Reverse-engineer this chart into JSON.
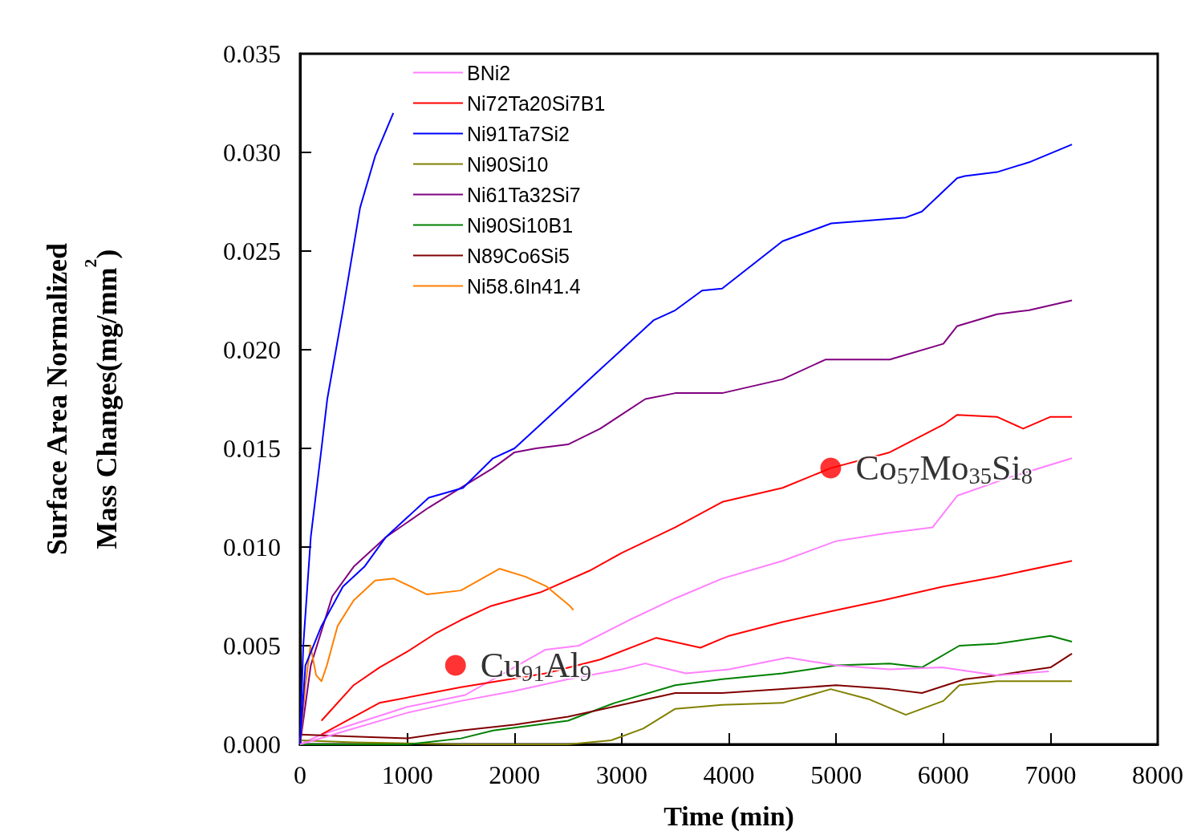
{
  "chart_data": {
    "type": "line",
    "xlabel": "Time (min)",
    "ylabel": "Surface Area Normalized\nMass Changes(mg/mm$^{2}$)",
    "xlim": [
      0,
      8000
    ],
    "xticks": [
      0,
      1000,
      2000,
      3000,
      4000,
      5000,
      6000,
      7000,
      8000
    ],
    "ylim": [
      0,
      0.035
    ],
    "yticks": [
      {
        "value": 0,
        "label": "0.000"
      },
      {
        "value": 0.005,
        "label": "0.005"
      },
      {
        "value": 0.01,
        "label": "0.010"
      },
      {
        "value": 0.015,
        "label": "0.015"
      },
      {
        "value": 0.02,
        "label": "0.020"
      },
      {
        "value": 0.025,
        "label": "0.025"
      },
      {
        "value": 0.03,
        "label": "0.030"
      },
      {
        "value": 0.035,
        "label": "0.035"
      }
    ],
    "grid": false,
    "legend": "top left",
    "marker": "none",
    "line_style": "solid",
    "annotations": [
      {
        "text": "Co$_{57}$Mo$_{35}$Si$_{8}$",
        "x": 4950,
        "y": 0.014
      },
      {
        "text": "Cu$_{91}$Al$_{9}$",
        "x": 1450,
        "y": 0.004
      }
    ],
    "series": [
      {
        "name": "BNi2",
        "color": "#ff80ff",
        "x": [
          0,
          200,
          600,
          1000,
          1540,
          2290,
          2600,
          3070,
          3500,
          3937,
          4500,
          5000,
          5470,
          5900,
          6130,
          6600,
          7200
        ],
        "values": [
          0,
          0.0005,
          0.0012,
          0.0019,
          0.0025,
          0.0048,
          0.005,
          0.0063,
          0.0074,
          0.0084,
          0.0093,
          0.0103,
          0.0107,
          0.011,
          0.0126,
          0.0135,
          0.0145
        ]
      },
      {
        "name": "Ni72Ta20Si7B1",
        "color": "#ff0000",
        "x": [
          200,
          500,
          741,
          1000,
          1257,
          1500,
          1775,
          2240,
          2700,
          3000,
          3500,
          3945,
          4500,
          4950,
          5500,
          6000,
          6130,
          6500,
          6745,
          7000,
          7200
        ],
        "values": [
          0.0012,
          0.003,
          0.0039,
          0.0047,
          0.0056,
          0.0063,
          0.007,
          0.0077,
          0.0088,
          0.0097,
          0.011,
          0.0123,
          0.013,
          0.014,
          0.0148,
          0.0162,
          0.0167,
          0.0166,
          0.016,
          0.0166,
          0.0166
        ]
      },
      {
        "name": "Ni91Ta7Si2",
        "color": "#0000ff",
        "x": [
          0,
          30,
          100,
          200,
          254,
          400,
          560,
          700,
          870
        ],
        "values": [
          0,
          0.005,
          0.0105,
          0.015,
          0.0175,
          0.022,
          0.0272,
          0.0298,
          0.032
        ]
      },
      {
        "name": "Ni90Si10",
        "color": "#808000",
        "x": [
          0,
          500,
          1500,
          2500,
          2900,
          3200,
          3500,
          3937,
          4500,
          4950,
          5300,
          5650,
          6000,
          6150,
          6500,
          7000,
          7200
        ],
        "values": [
          0.0002,
          0.0001,
          0,
          0,
          0.0002,
          0.0008,
          0.0018,
          0.002,
          0.0021,
          0.0028,
          0.0023,
          0.0015,
          0.0022,
          0.003,
          0.0032,
          0.0032,
          0.0032
        ]
      },
      {
        "name": "Ni61Ta32Si7",
        "color": "#800080",
        "x": [
          0,
          100,
          300,
          500,
          800,
          1200,
          1500,
          1800,
          2000,
          2200,
          2500,
          2800,
          3220,
          3500,
          3937,
          4500,
          4900,
          5500,
          6000,
          6130,
          6500,
          6800,
          7200
        ],
        "values": [
          0,
          0.004,
          0.0075,
          0.009,
          0.0105,
          0.012,
          0.013,
          0.014,
          0.0148,
          0.015,
          0.0152,
          0.016,
          0.0175,
          0.0178,
          0.0178,
          0.0185,
          0.0195,
          0.0195,
          0.0203,
          0.0212,
          0.0218,
          0.022,
          0.0225
        ]
      },
      {
        "name": "Ni90Si10B1",
        "color": "#008000",
        "x": [
          0,
          1000,
          1500,
          1800,
          2500,
          2935,
          3500,
          3937,
          4500,
          5000,
          5500,
          5800,
          6150,
          6500,
          7000,
          7200
        ],
        "values": [
          0,
          0,
          0.0003,
          0.0007,
          0.0012,
          0.0021,
          0.003,
          0.0033,
          0.0036,
          0.004,
          0.0041,
          0.0039,
          0.005,
          0.0051,
          0.0055,
          0.0052
        ]
      },
      {
        "name": "N89Co6Si5",
        "color": "#800000",
        "x": [
          0,
          500,
          1000,
          1500,
          2000,
          2500,
          3000,
          3500,
          3937,
          4500,
          5000,
          5500,
          5800,
          6200,
          6500,
          7000,
          7200
        ],
        "values": [
          0.0005,
          0.0004,
          0.0003,
          0.0007,
          0.001,
          0.0014,
          0.002,
          0.0026,
          0.0026,
          0.0028,
          0.003,
          0.0028,
          0.0026,
          0.0033,
          0.0035,
          0.0039,
          0.0046
        ]
      },
      {
        "name": "Ni58.6In41.4",
        "color": "#ff8000",
        "x": [
          0,
          50,
          97,
          150,
          200,
          250,
          350,
          500,
          700,
          875,
          1185,
          1500,
          1860,
          2100,
          2300,
          2520,
          2550
        ],
        "values": [
          0,
          0.003,
          0.005,
          0.0035,
          0.0032,
          0.004,
          0.006,
          0.0073,
          0.0083,
          0.0084,
          0.0076,
          0.0078,
          0.0089,
          0.0085,
          0.008,
          0.007,
          0.0068
        ]
      },
      {
        "color": "#0000ff",
        "x": [
          0,
          50,
          200,
          400,
          600,
          800,
          1000,
          1200,
          1520,
          1800,
          2000,
          2200,
          2500,
          2800,
          3000,
          3300,
          3500,
          3750,
          3937,
          4500,
          4955,
          5200,
          5650,
          5800,
          6130,
          6200,
          6500,
          6800,
          7200
        ],
        "values": [
          0,
          0.004,
          0.006,
          0.008,
          0.009,
          0.0105,
          0.0115,
          0.0125,
          0.013,
          0.0145,
          0.015,
          0.016,
          0.0175,
          0.019,
          0.02,
          0.0215,
          0.022,
          0.023,
          0.0231,
          0.0255,
          0.0264,
          0.0265,
          0.0267,
          0.027,
          0.0287,
          0.0288,
          0.029,
          0.0295,
          0.0304
        ]
      },
      {
        "color": "#ff0000",
        "x": [
          200,
          740,
          1500,
          2290,
          2800,
          3323,
          3735,
          4000,
          4500,
          5000,
          5434,
          6000,
          6500,
          7200
        ],
        "values": [
          0.0005,
          0.0021,
          0.0029,
          0.0036,
          0.0043,
          0.0054,
          0.0049,
          0.0055,
          0.0062,
          0.0068,
          0.0073,
          0.008,
          0.0085,
          0.0093
        ]
      },
      {
        "color": "#ff80ff",
        "x": [
          0,
          500,
          1000,
          1500,
          2000,
          2500,
          3000,
          3220,
          3600,
          4000,
          4550,
          5000,
          5500,
          5990,
          6500,
          6985
        ],
        "values": [
          0,
          0.0008,
          0.0016,
          0.0022,
          0.0027,
          0.0033,
          0.0038,
          0.0041,
          0.0036,
          0.0038,
          0.0044,
          0.004,
          0.0038,
          0.0039,
          0.0035,
          0.0037
        ]
      }
    ]
  }
}
